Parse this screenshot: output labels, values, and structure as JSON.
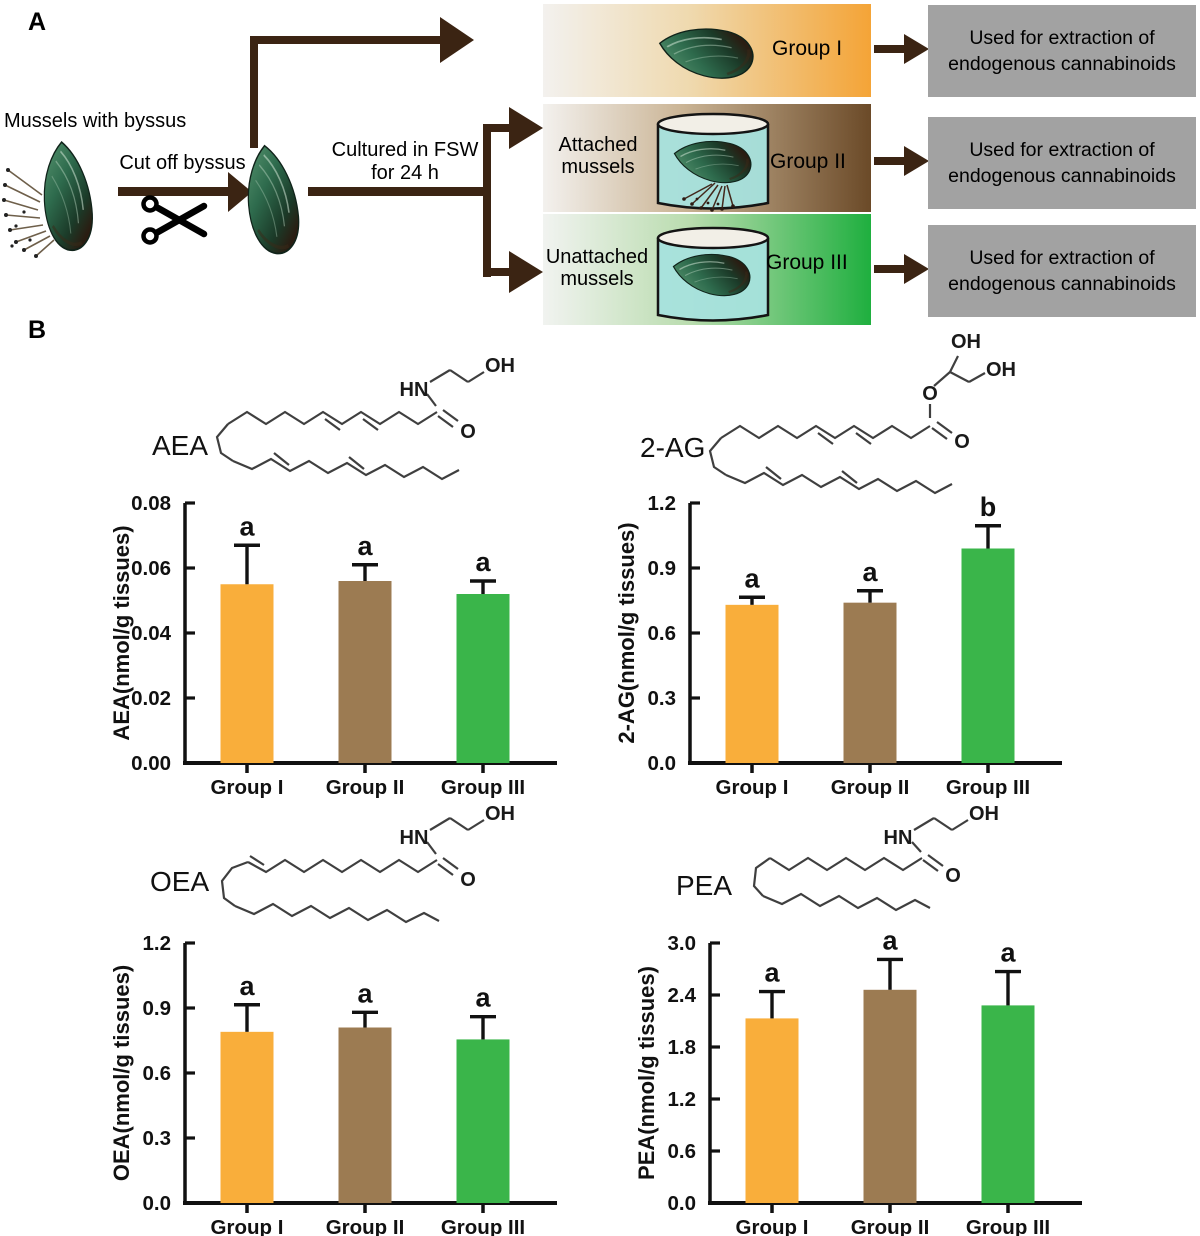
{
  "panel_a": {
    "label": "A",
    "source_label": "Mussels with byssus",
    "step1_label": "Cut off byssus",
    "step2_line1": "Cultured in FSW",
    "step2_line2": "for 24 h",
    "extraction_text": "Used for extraction of endogenous cannabinoids",
    "groups": [
      {
        "name": "Group I",
        "side_label": ""
      },
      {
        "name": "Group II",
        "side_label": "Attached mussels"
      },
      {
        "name": "Group III",
        "side_label": "Unattached mussels"
      }
    ]
  },
  "panel_b": {
    "label": "B"
  },
  "colors": {
    "arrow_brown": "#3B2413",
    "bar_orange": "#F9AE3B",
    "bar_brown": "#9C7B52",
    "bar_green": "#3AB54A",
    "box1_gradient_end": "#F4A437",
    "box2_gradient_end": "#6B4A28",
    "box3_gradient_end": "#1FAF3F",
    "result_box_gray": "#A2A2A2",
    "beaker_water": "#A7E1DD"
  },
  "chart_data": [
    {
      "id": "aea",
      "type": "bar",
      "title": "AEA",
      "ylabel": "AEA(nmol/g tissues)",
      "categories": [
        "Group I",
        "Group II",
        "Group III"
      ],
      "values": [
        0.055,
        0.056,
        0.052
      ],
      "errors": [
        0.012,
        0.005,
        0.004
      ],
      "sig_labels": [
        "a",
        "a",
        "a"
      ],
      "ylim": [
        0,
        0.08
      ],
      "yticks": [
        0,
        0.02,
        0.04,
        0.06,
        0.08
      ],
      "ytick_labels": [
        "0.00",
        "0.02",
        "0.04",
        "0.06",
        "0.08"
      ],
      "bar_colors": [
        "#F9AE3B",
        "#9C7B52",
        "#3AB54A"
      ],
      "grid": false,
      "legend": false,
      "atom_labels": [
        "HN",
        "OH",
        "O"
      ]
    },
    {
      "id": "2ag",
      "type": "bar",
      "title": "2-AG",
      "ylabel": "2-AG(nmol/g tissues)",
      "categories": [
        "Group I",
        "Group II",
        "Group III"
      ],
      "values": [
        0.73,
        0.74,
        0.99
      ],
      "errors": [
        0.035,
        0.055,
        0.105
      ],
      "sig_labels": [
        "a",
        "a",
        "b"
      ],
      "ylim": [
        0,
        1.2
      ],
      "yticks": [
        0,
        0.3,
        0.6,
        0.9,
        1.2
      ],
      "ytick_labels": [
        "0.0",
        "0.3",
        "0.6",
        "0.9",
        "1.2"
      ],
      "bar_colors": [
        "#F9AE3B",
        "#9C7B52",
        "#3AB54A"
      ],
      "grid": false,
      "legend": false,
      "atom_labels": [
        "O",
        "OH",
        "OH",
        "O"
      ]
    },
    {
      "id": "oea",
      "type": "bar",
      "title": "OEA",
      "ylabel": "OEA(nmol/g tissues)",
      "categories": [
        "Group I",
        "Group II",
        "Group III"
      ],
      "values": [
        0.79,
        0.81,
        0.755
      ],
      "errors": [
        0.125,
        0.07,
        0.105
      ],
      "sig_labels": [
        "a",
        "a",
        "a"
      ],
      "ylim": [
        0,
        1.2
      ],
      "yticks": [
        0,
        0.3,
        0.6,
        0.9,
        1.2
      ],
      "ytick_labels": [
        "0.0",
        "0.3",
        "0.6",
        "0.9",
        "1.2"
      ],
      "bar_colors": [
        "#F9AE3B",
        "#9C7B52",
        "#3AB54A"
      ],
      "grid": false,
      "legend": false,
      "atom_labels": [
        "HN",
        "OH",
        "O"
      ]
    },
    {
      "id": "pea",
      "type": "bar",
      "title": "PEA",
      "ylabel": "PEA(nmol/g tissues)",
      "categories": [
        "Group I",
        "Group II",
        "Group III"
      ],
      "values": [
        2.13,
        2.46,
        2.28
      ],
      "errors": [
        0.31,
        0.35,
        0.39
      ],
      "sig_labels": [
        "a",
        "a",
        "a"
      ],
      "ylim": [
        0,
        3.0
      ],
      "yticks": [
        0,
        0.6,
        1.2,
        1.8,
        2.4,
        3.0
      ],
      "ytick_labels": [
        "0.0",
        "0.6",
        "1.2",
        "1.8",
        "2.4",
        "3.0"
      ],
      "bar_colors": [
        "#F9AE3B",
        "#9C7B52",
        "#3AB54A"
      ],
      "grid": false,
      "legend": false,
      "atom_labels": [
        "HN",
        "OH",
        "O"
      ]
    }
  ]
}
